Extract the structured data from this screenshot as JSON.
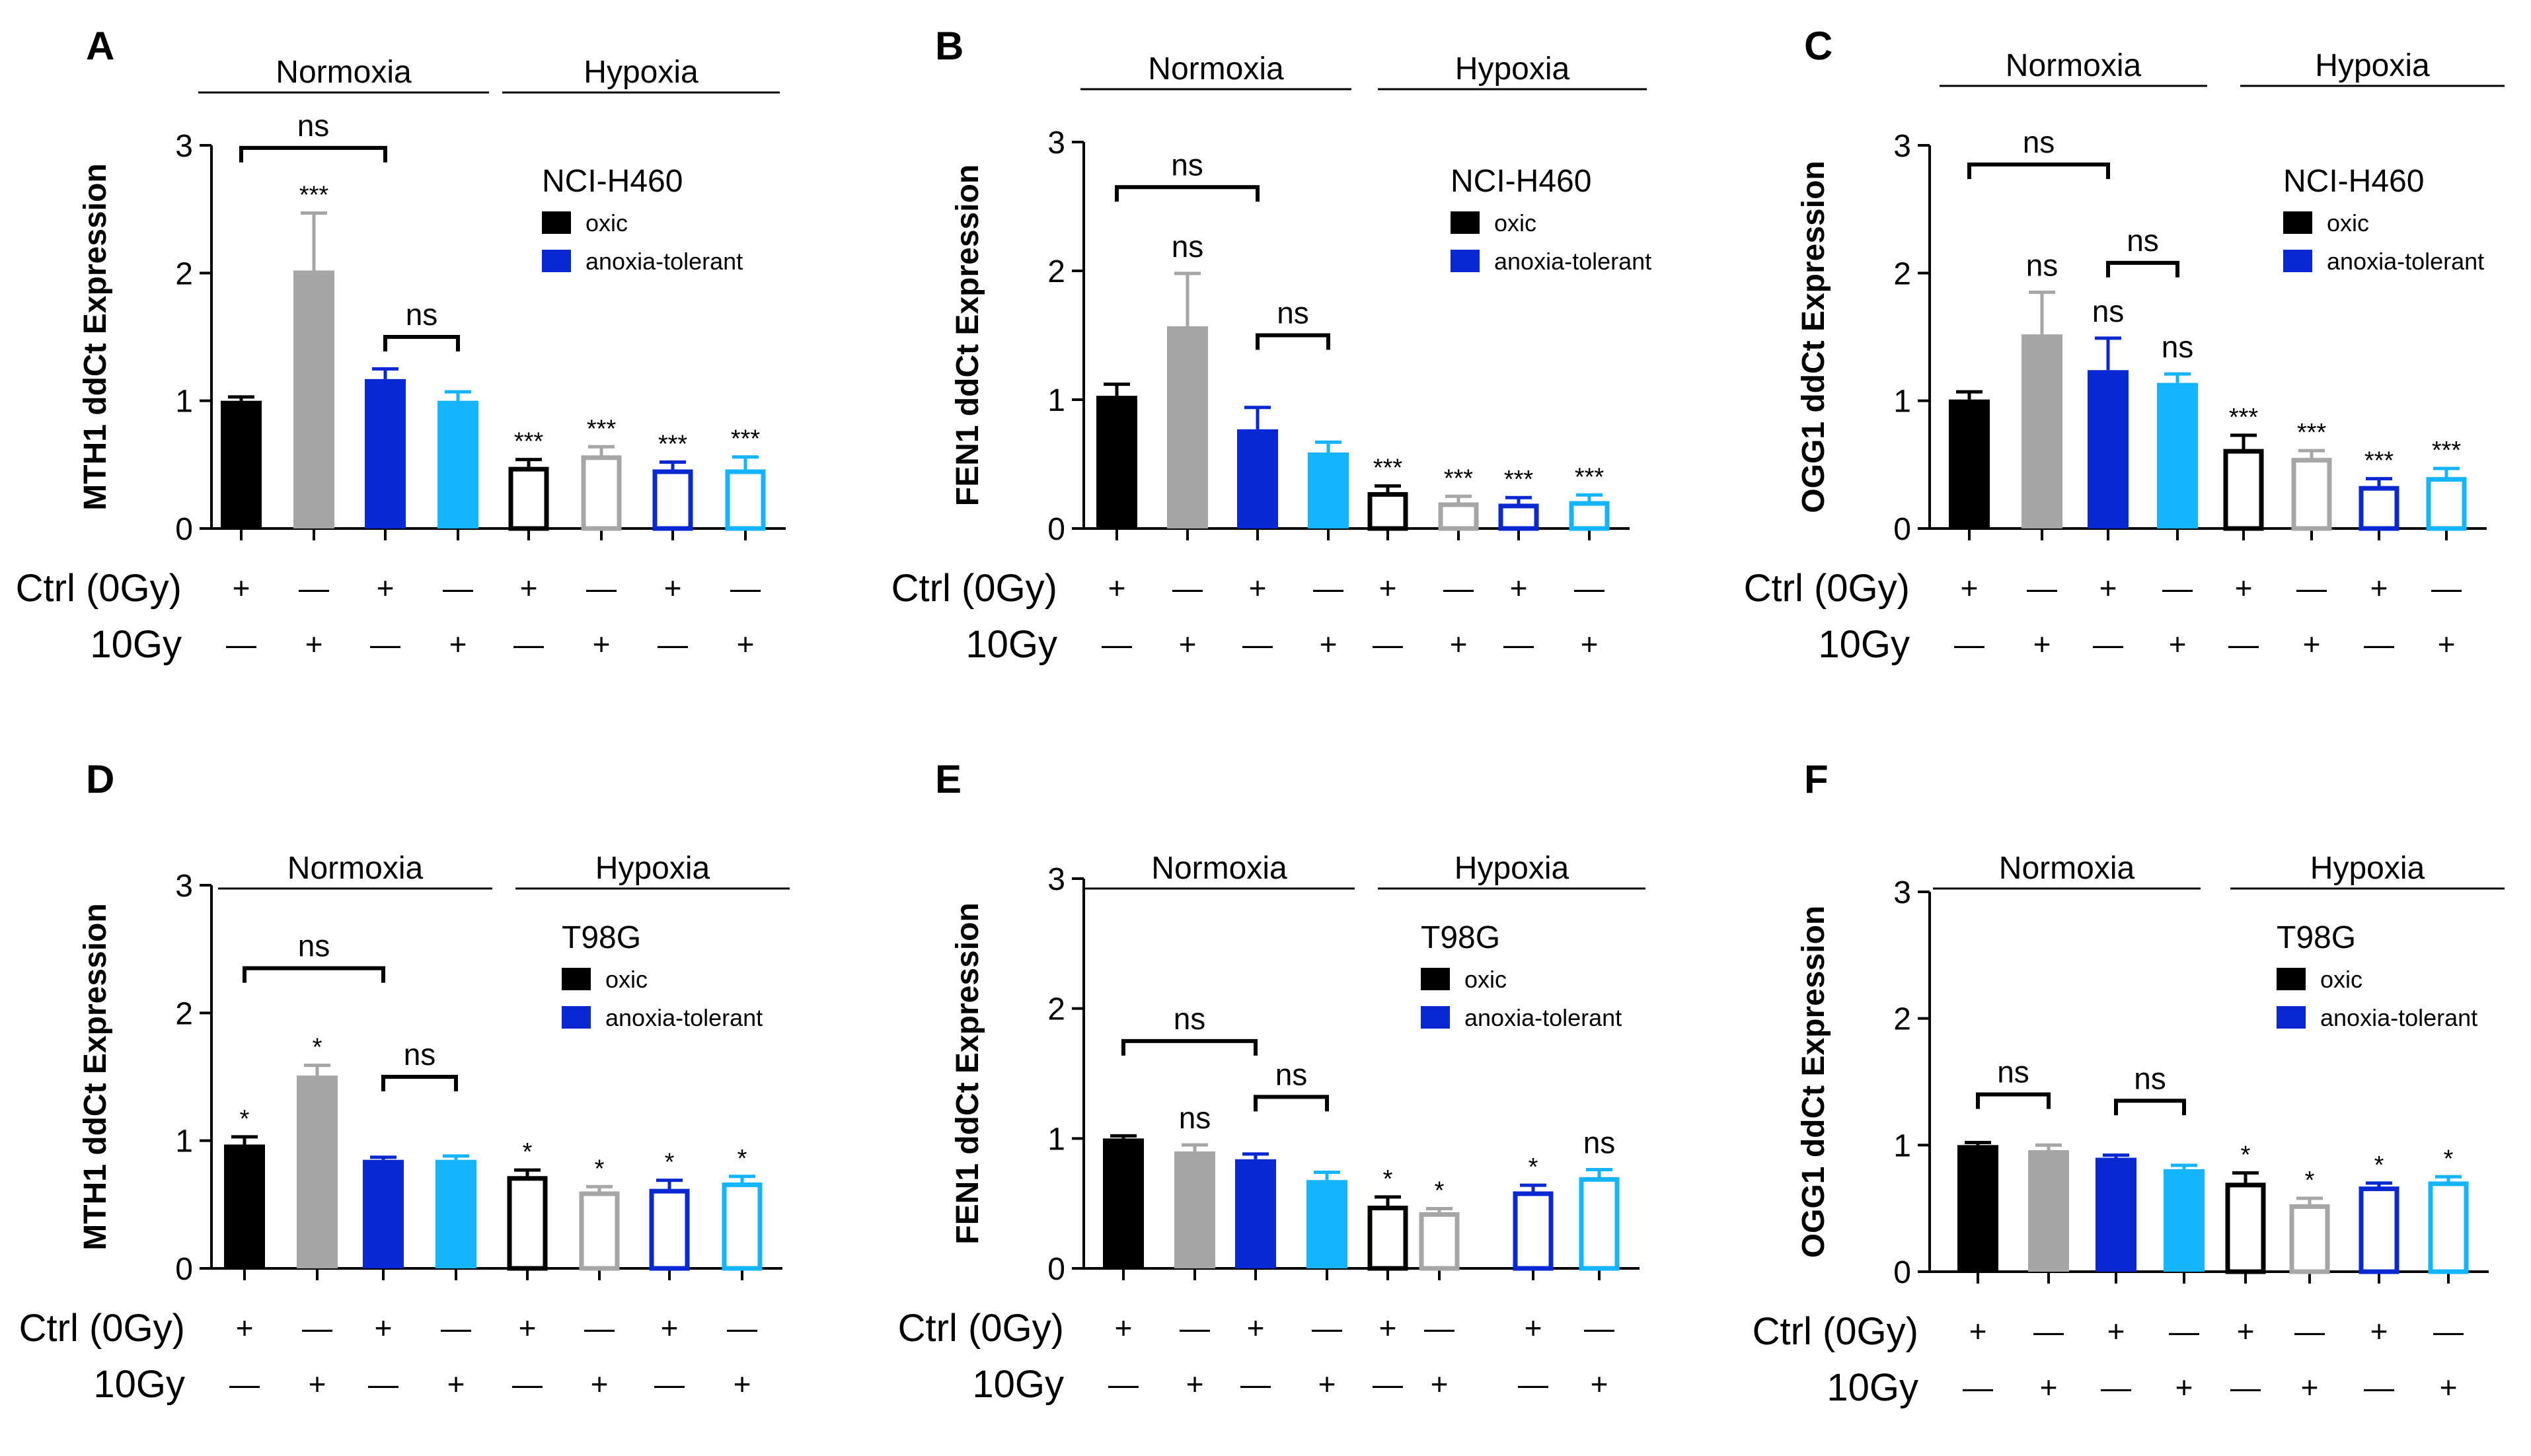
{
  "colors": {
    "oxic_ctrl": "#000000",
    "oxic_10gy": "#a6a6a6",
    "anoxia_ctrl": "#0a28d2",
    "anoxia_10gy": "#14b4ff",
    "axis": "#000000"
  },
  "legend_labels": [
    "oxic",
    "anoxia-tolerant"
  ],
  "condition_labels": {
    "normoxia": "Normoxia",
    "hypoxia": "Hypoxia"
  },
  "treatment_rows": {
    "ctrl_label": "Ctrl (0Gy)",
    "gy_label": "10Gy",
    "ctrl_signs": [
      "+",
      "—",
      "+",
      "—",
      "+",
      "—",
      "+",
      "—"
    ],
    "gy_signs": [
      "—",
      "+",
      "—",
      "+",
      "—",
      "+",
      "—",
      "+"
    ]
  },
  "chart_data": [
    {
      "panel": "A",
      "type": "bar",
      "cell_line": "NCI-H460",
      "ylabel": "MTH1 ddCt Expression",
      "ylim": [
        0,
        3
      ],
      "yticks": [
        "0",
        "1",
        "2",
        "3"
      ],
      "values": [
        1.0,
        2.02,
        1.17,
        1.0,
        0.48,
        0.57,
        0.46,
        0.46
      ],
      "errors": [
        0.03,
        0.45,
        0.08,
        0.07,
        0.06,
        0.07,
        0.06,
        0.1
      ],
      "stars": [
        "",
        "***",
        "",
        "",
        "***",
        "***",
        "***",
        "***"
      ],
      "brackets": [
        {
          "from": 0,
          "to": 2,
          "label": "ns",
          "level": 2.98
        },
        {
          "from": 2,
          "to": 3,
          "label": "ns",
          "level": 1.5
        }
      ]
    },
    {
      "panel": "B",
      "type": "bar",
      "cell_line": "NCI-H460",
      "ylabel": "FEN1 ddCt Expression",
      "ylim": [
        0,
        3
      ],
      "yticks": [
        "0",
        "1",
        "2",
        "3"
      ],
      "values": [
        1.03,
        1.57,
        0.77,
        0.59,
        0.28,
        0.2,
        0.19,
        0.21
      ],
      "errors": [
        0.09,
        0.41,
        0.17,
        0.08,
        0.05,
        0.05,
        0.05,
        0.05
      ],
      "stars": [
        "",
        "ns",
        "",
        "",
        "***",
        "***",
        "***",
        "***"
      ],
      "brackets": [
        {
          "from": 0,
          "to": 2,
          "label": "ns",
          "level": 2.65
        },
        {
          "from": 2,
          "to": 3,
          "label": "ns",
          "level": 1.5
        }
      ]
    },
    {
      "panel": "C",
      "type": "bar",
      "cell_line": "NCI-H460",
      "ylabel": "OGG1 ddCt Expression",
      "ylim": [
        0,
        3
      ],
      "yticks": [
        "0",
        "1",
        "2",
        "3"
      ],
      "values": [
        1.01,
        1.52,
        1.24,
        1.14,
        0.62,
        0.55,
        0.33,
        0.4
      ],
      "errors": [
        0.06,
        0.33,
        0.25,
        0.07,
        0.11,
        0.06,
        0.06,
        0.07
      ],
      "stars": [
        "",
        "ns",
        "ns",
        "ns",
        "***",
        "***",
        "***",
        "***"
      ],
      "brackets": [
        {
          "from": 0,
          "to": 2,
          "label": "ns",
          "level": 2.85
        },
        {
          "from": 2,
          "to": 3,
          "label": "ns",
          "level": 2.08
        }
      ]
    },
    {
      "panel": "D",
      "type": "bar",
      "cell_line": "T98G",
      "ylabel": "MTH1 ddCt Expression",
      "ylim": [
        0,
        3
      ],
      "yticks": [
        "0",
        "1",
        "2",
        "3"
      ],
      "values": [
        0.97,
        1.51,
        0.85,
        0.85,
        0.72,
        0.6,
        0.62,
        0.67
      ],
      "errors": [
        0.06,
        0.08,
        0.02,
        0.03,
        0.05,
        0.04,
        0.07,
        0.05
      ],
      "stars": [
        "*",
        "*",
        "",
        "",
        "*",
        "*",
        "*",
        "*"
      ],
      "brackets": [
        {
          "from": 0,
          "to": 2,
          "label": "ns",
          "level": 2.35
        },
        {
          "from": 2,
          "to": 3,
          "label": "ns",
          "level": 1.5
        }
      ]
    },
    {
      "panel": "E",
      "type": "bar",
      "cell_line": "T98G",
      "ylabel": "FEN1 ddCt Expression",
      "ylim": [
        0,
        3
      ],
      "yticks": [
        "0",
        "1",
        "2",
        "3"
      ],
      "values": [
        1.0,
        0.9,
        0.84,
        0.68,
        0.48,
        0.43,
        0.59,
        0.7
      ],
      "errors": [
        0.02,
        0.05,
        0.04,
        0.06,
        0.07,
        0.03,
        0.05,
        0.06
      ],
      "stars": [
        "",
        "ns",
        "",
        "",
        "*",
        "*",
        "*",
        "ns"
      ],
      "brackets": [
        {
          "from": 0,
          "to": 2,
          "label": "ns",
          "level": 1.75
        },
        {
          "from": 2,
          "to": 3,
          "label": "ns",
          "level": 1.32
        }
      ]
    },
    {
      "panel": "F",
      "type": "bar",
      "cell_line": "T98G",
      "ylabel": "OGG1 ddCt Expression",
      "ylim": [
        0,
        3
      ],
      "yticks": [
        "0",
        "1",
        "2",
        "3"
      ],
      "values": [
        1.0,
        0.96,
        0.9,
        0.81,
        0.7,
        0.53,
        0.67,
        0.71
      ],
      "errors": [
        0.02,
        0.04,
        0.02,
        0.03,
        0.08,
        0.05,
        0.03,
        0.04
      ],
      "stars": [
        "",
        "",
        "",
        "",
        "*",
        "*",
        "*",
        "*"
      ],
      "brackets": [
        {
          "from": 0,
          "to": 1,
          "label": "ns",
          "level": 1.4
        },
        {
          "from": 2,
          "to": 3,
          "label": "ns",
          "level": 1.35
        }
      ]
    }
  ]
}
